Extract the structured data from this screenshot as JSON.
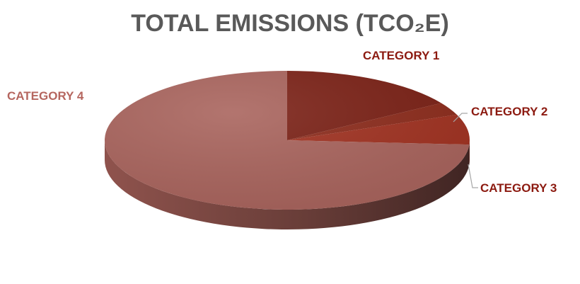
{
  "chart_data": {
    "type": "pie",
    "style": "3d",
    "title": "TOTAL EMISSIONS (TCO₂E)",
    "categories": [
      "CATEGORY 1",
      "CATEGORY 2",
      "CATEGORY 3",
      "CATEGORY 4"
    ],
    "values": [
      16,
      3,
      7,
      74
    ],
    "colors": [
      "#7a1f14",
      "#8c2a1a",
      "#a0301f",
      "#a8625b"
    ],
    "label_colors": [
      "#8c1a10",
      "#8c1a10",
      "#8c1a10",
      "#b5665f"
    ],
    "legend": "none"
  }
}
